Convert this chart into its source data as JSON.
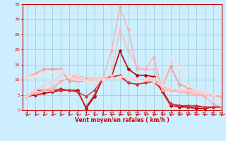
{
  "x": [
    0,
    1,
    2,
    3,
    4,
    5,
    6,
    7,
    8,
    9,
    10,
    11,
    12,
    13,
    14,
    15,
    16,
    17,
    18,
    19,
    20,
    21,
    22,
    23
  ],
  "series": [
    {
      "y": [
        4.5,
        5.0,
        5.5,
        6.0,
        6.5,
        6.5,
        6.5,
        0.5,
        4.5,
        10.5,
        11.0,
        19.5,
        13.5,
        11.5,
        11.5,
        11.0,
        6.0,
        1.5,
        1.0,
        1.0,
        0.5,
        0.5,
        1.0,
        1.0
      ],
      "color": "#bb0000",
      "lw": 1.2,
      "marker": "D",
      "ms": 2.0
    },
    {
      "y": [
        4.5,
        6.5,
        6.5,
        6.5,
        7.0,
        6.5,
        6.0,
        1.0,
        5.0,
        10.5,
        11.0,
        11.0,
        9.0,
        8.5,
        9.0,
        9.5,
        6.5,
        2.0,
        1.5,
        1.0,
        1.0,
        1.0,
        1.0,
        1.0
      ],
      "color": "#cc2222",
      "lw": 1.0,
      "marker": "D",
      "ms": 1.8
    },
    {
      "y": [
        4.5,
        5.5,
        6.5,
        6.5,
        6.5,
        6.5,
        6.0,
        4.5,
        6.5,
        10.5,
        11.0,
        11.5,
        9.0,
        8.5,
        9.0,
        9.5,
        6.5,
        2.0,
        1.5,
        1.5,
        1.5,
        1.0,
        1.0,
        1.0
      ],
      "color": "#dd3333",
      "lw": 1.0,
      "marker": "D",
      "ms": 1.8
    },
    {
      "y": [
        4.5,
        5.5,
        6.5,
        7.5,
        9.5,
        10.5,
        10.5,
        9.5,
        10.5,
        10.5,
        11.5,
        26.5,
        19.5,
        14.5,
        13.5,
        13.5,
        8.0,
        6.5,
        6.5,
        6.0,
        5.5,
        5.0,
        4.5,
        4.5
      ],
      "color": "#ffbbbb",
      "lw": 1.2,
      "marker": "D",
      "ms": 2.0
    },
    {
      "y": [
        4.5,
        5.5,
        6.5,
        6.5,
        9.5,
        10.5,
        11.5,
        10.5,
        10.5,
        10.5,
        19.5,
        34.0,
        26.5,
        13.5,
        13.5,
        17.5,
        6.5,
        6.5,
        6.0,
        5.5,
        5.0,
        4.5,
        2.0,
        1.0
      ],
      "color": "#ffaaaa",
      "lw": 1.0,
      "marker": "D",
      "ms": 1.8
    },
    {
      "y": [
        4.5,
        6.5,
        8.0,
        9.5,
        11.5,
        11.5,
        11.5,
        9.5,
        10.5,
        10.5,
        10.5,
        11.0,
        10.5,
        10.0,
        10.0,
        10.5,
        8.0,
        7.0,
        6.5,
        6.5,
        6.0,
        5.5,
        5.0,
        4.5
      ],
      "color": "#ffcccc",
      "lw": 1.2,
      "marker": "D",
      "ms": 2.0
    },
    {
      "y": [
        11.0,
        12.0,
        13.5,
        13.5,
        13.5,
        9.5,
        9.5,
        9.5,
        9.5,
        10.0,
        10.5,
        11.0,
        10.5,
        10.0,
        10.0,
        9.5,
        7.5,
        14.5,
        8.5,
        7.5,
        6.5,
        5.5,
        5.0,
        4.5
      ],
      "color": "#ff9999",
      "lw": 1.2,
      "marker": "D",
      "ms": 2.0
    },
    {
      "y": [
        11.0,
        11.5,
        12.0,
        12.5,
        13.0,
        11.0,
        10.0,
        9.5,
        9.5,
        10.0,
        10.5,
        11.0,
        10.5,
        10.0,
        10.0,
        9.5,
        8.0,
        17.5,
        14.0,
        8.0,
        6.5,
        5.5,
        5.0,
        5.0
      ],
      "color": "#ffdddd",
      "lw": 1.0,
      "marker": "D",
      "ms": 1.8
    }
  ],
  "xlabel": "Vent moyen/en rafales ( km/h )",
  "xlim": [
    -0.5,
    23
  ],
  "ylim": [
    0,
    35
  ],
  "yticks": [
    0,
    5,
    10,
    15,
    20,
    25,
    30,
    35
  ],
  "xticks": [
    0,
    1,
    2,
    3,
    4,
    5,
    6,
    7,
    8,
    9,
    10,
    11,
    12,
    13,
    14,
    15,
    16,
    17,
    18,
    19,
    20,
    21,
    22,
    23
  ],
  "bg_color": "#cceeff",
  "grid_color": "#99cccc",
  "axis_color": "#cc0000",
  "label_color": "#cc0000",
  "tick_color": "#cc0000"
}
